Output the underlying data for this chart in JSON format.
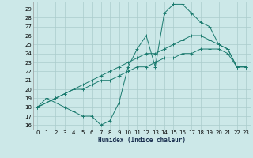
{
  "xlabel": "Humidex (Indice chaleur)",
  "bg_color": "#cce8e8",
  "grid_color": "#aacccc",
  "line_color": "#1a7a6e",
  "xlim": [
    -0.5,
    23.5
  ],
  "ylim": [
    15.5,
    29.8
  ],
  "xticks": [
    0,
    1,
    2,
    3,
    4,
    5,
    6,
    7,
    8,
    9,
    10,
    11,
    12,
    13,
    14,
    15,
    16,
    17,
    18,
    19,
    20,
    21,
    22,
    23
  ],
  "yticks": [
    16,
    17,
    18,
    19,
    20,
    21,
    22,
    23,
    24,
    25,
    26,
    27,
    28,
    29
  ],
  "c1_x": [
    0,
    1,
    3,
    4,
    5,
    6,
    7,
    8,
    9,
    10,
    11,
    12,
    13,
    14,
    15,
    16,
    17,
    18,
    19,
    20,
    21,
    22,
    23
  ],
  "c1_y": [
    18,
    19,
    18,
    17.5,
    17,
    17,
    16,
    16.5,
    18.5,
    22.5,
    24.5,
    26,
    22.5,
    28.5,
    29.5,
    29.5,
    28.5,
    27.5,
    27,
    25,
    24.5,
    22.5,
    22.5
  ],
  "c2_x": [
    0,
    1,
    2,
    3,
    4,
    5,
    6,
    7,
    8,
    9,
    10,
    11,
    12,
    13,
    14,
    15,
    16,
    17,
    18,
    19,
    20,
    21,
    22,
    23
  ],
  "c2_y": [
    18,
    18.5,
    19,
    19.5,
    20,
    20.5,
    21,
    21.5,
    22,
    22.5,
    23,
    23.5,
    24,
    24,
    24.5,
    25,
    25.5,
    26,
    26,
    25.5,
    25,
    24.5,
    22.5,
    22.5
  ],
  "c3_x": [
    0,
    1,
    2,
    3,
    4,
    5,
    6,
    7,
    8,
    9,
    10,
    11,
    12,
    13,
    14,
    15,
    16,
    17,
    18,
    19,
    20,
    21,
    22,
    23
  ],
  "c3_y": [
    18,
    18.5,
    19,
    19.5,
    20,
    20,
    20.5,
    21,
    21,
    21.5,
    22,
    22.5,
    22.5,
    23,
    23.5,
    23.5,
    24,
    24,
    24.5,
    24.5,
    24.5,
    24,
    22.5,
    22.5
  ]
}
